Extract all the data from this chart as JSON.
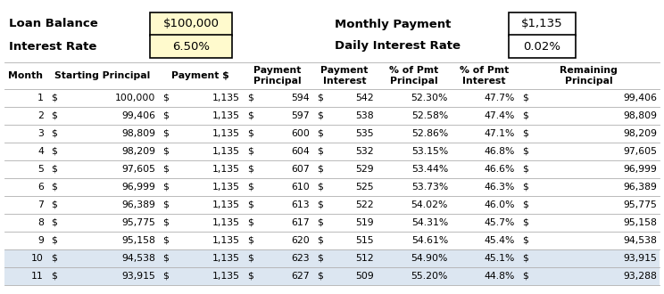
{
  "loan_balance": "$100,000",
  "interest_rate": "6.50%",
  "monthly_payment": "$1,135",
  "daily_interest_rate": "0.02%",
  "rows": [
    [
      1,
      "$",
      "100,000",
      "$",
      "1,135",
      "$",
      "594",
      "$",
      "542",
      "52.30%",
      "47.7%",
      "$",
      "99,406"
    ],
    [
      2,
      "$",
      "99,406",
      "$",
      "1,135",
      "$",
      "597",
      "$",
      "538",
      "52.58%",
      "47.4%",
      "$",
      "98,809"
    ],
    [
      3,
      "$",
      "98,809",
      "$",
      "1,135",
      "$",
      "600",
      "$",
      "535",
      "52.86%",
      "47.1%",
      "$",
      "98,209"
    ],
    [
      4,
      "$",
      "98,209",
      "$",
      "1,135",
      "$",
      "604",
      "$",
      "532",
      "53.15%",
      "46.8%",
      "$",
      "97,605"
    ],
    [
      5,
      "$",
      "97,605",
      "$",
      "1,135",
      "$",
      "607",
      "$",
      "529",
      "53.44%",
      "46.6%",
      "$",
      "96,999"
    ],
    [
      6,
      "$",
      "96,999",
      "$",
      "1,135",
      "$",
      "610",
      "$",
      "525",
      "53.73%",
      "46.3%",
      "$",
      "96,389"
    ],
    [
      7,
      "$",
      "96,389",
      "$",
      "1,135",
      "$",
      "613",
      "$",
      "522",
      "54.02%",
      "46.0%",
      "$",
      "95,775"
    ],
    [
      8,
      "$",
      "95,775",
      "$",
      "1,135",
      "$",
      "617",
      "$",
      "519",
      "54.31%",
      "45.7%",
      "$",
      "95,158"
    ],
    [
      9,
      "$",
      "95,158",
      "$",
      "1,135",
      "$",
      "620",
      "$",
      "515",
      "54.61%",
      "45.4%",
      "$",
      "94,538"
    ],
    [
      10,
      "$",
      "94,538",
      "$",
      "1,135",
      "$",
      "623",
      "$",
      "512",
      "54.90%",
      "45.1%",
      "$",
      "93,915"
    ],
    [
      11,
      "$",
      "93,915",
      "$",
      "1,135",
      "$",
      "627",
      "$",
      "509",
      "55.20%",
      "44.8%",
      "$",
      "93,288"
    ]
  ],
  "highlighted_rows": [
    9,
    10
  ],
  "bg_color": "#ffffff",
  "row_bg_normal": "#ffffff",
  "row_bg_highlight": "#dce6f1",
  "box_bg_yellow": "#fffacd",
  "box_bg_white": "#ffffff",
  "border_color": "#000000",
  "text_color": "#000000",
  "line_color": "#b0b0b0"
}
